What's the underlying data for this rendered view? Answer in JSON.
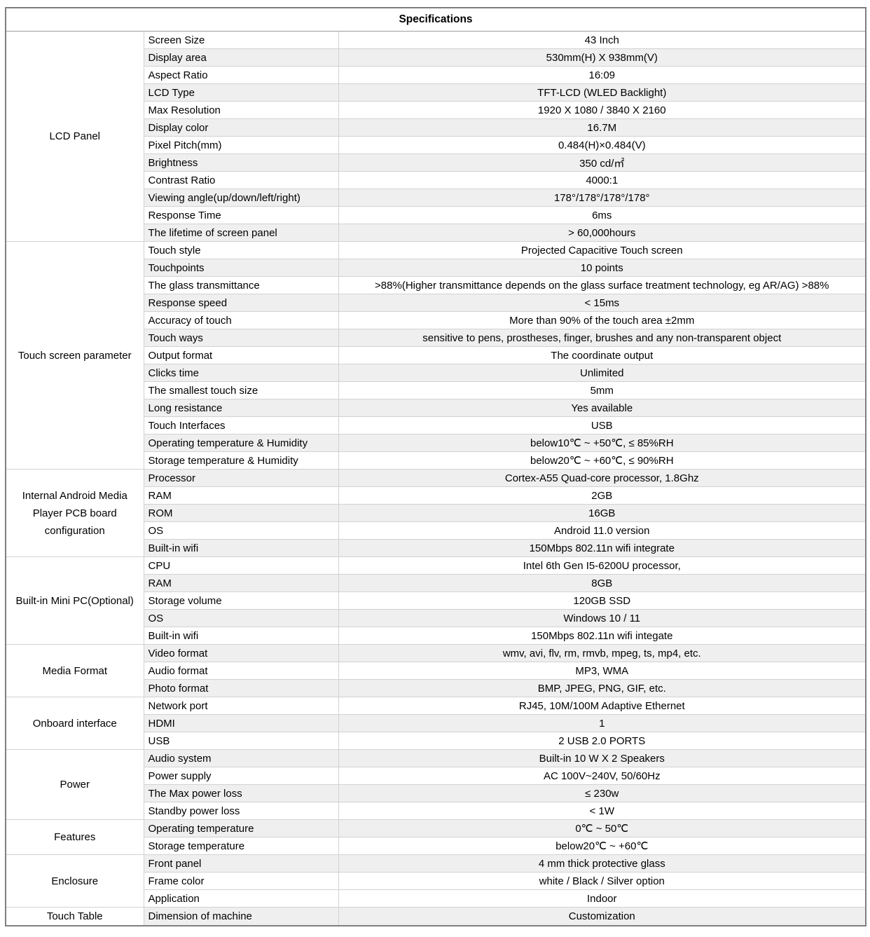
{
  "title": "Specifications",
  "colors": {
    "row_shade": "#efefef",
    "border_light": "#d2d2d2",
    "border_section": "#9a9a9a",
    "border_outer": "#7f7f7f",
    "text": "#000000",
    "background": "#ffffff"
  },
  "sections": [
    {
      "category": "LCD Panel",
      "rows": [
        {
          "param": "Screen Size",
          "value": "43 Inch",
          "shaded": false
        },
        {
          "param": "Display area",
          "value": "530mm(H) X 938mm(V)",
          "shaded": true
        },
        {
          "param": "Aspect Ratio",
          "value": "16:09",
          "shaded": false
        },
        {
          "param": "LCD Type",
          "value": "TFT-LCD (WLED Backlight)",
          "shaded": true
        },
        {
          "param": "Max Resolution",
          "value": "1920 X 1080 / 3840 X 2160",
          "shaded": false
        },
        {
          "param": "Display color",
          "value": "16.7M",
          "shaded": true
        },
        {
          "param": "Pixel Pitch(mm)",
          "value": "0.484(H)×0.484(V)",
          "shaded": false
        },
        {
          "param": "Brightness",
          "value": "350 cd/㎡",
          "shaded": true
        },
        {
          "param": "Contrast Ratio",
          "value": "4000:1",
          "shaded": false
        },
        {
          "param": "Viewing angle(up/down/left/right)",
          "value": "178°/178°/178°/178°",
          "shaded": true
        },
        {
          "param": "Response Time",
          "value": "6ms",
          "shaded": false
        },
        {
          "param": "The lifetime of screen panel",
          "value": "> 60,000hours",
          "shaded": true
        }
      ]
    },
    {
      "category": "Touch screen parameter",
      "rows": [
        {
          "param": "Touch style",
          "value": "Projected Capacitive Touch screen",
          "shaded": false
        },
        {
          "param": "Touchpoints",
          "value": "10 points",
          "shaded": true
        },
        {
          "param": "The glass transmittance",
          "value": ">88%(Higher transmittance depends on the glass surface treatment technology, eg AR/AG) >88%",
          "shaded": false
        },
        {
          "param": "Response speed",
          "value": "< 15ms",
          "shaded": true
        },
        {
          "param": "Accuracy of touch",
          "value": "More than 90% of the touch area ±2mm",
          "shaded": false
        },
        {
          "param": "Touch ways",
          "value": "sensitive to pens, prostheses, finger, brushes and any non-transparent object",
          "shaded": true
        },
        {
          "param": "Output format",
          "value": "The coordinate output",
          "shaded": false
        },
        {
          "param": "Clicks time",
          "value": "Unlimited",
          "shaded": true
        },
        {
          "param": "The smallest touch size",
          "value": "5mm",
          "shaded": false
        },
        {
          "param": "Long resistance",
          "value": "Yes available",
          "shaded": true
        },
        {
          "param": "Touch Interfaces",
          "value": "USB",
          "shaded": false
        },
        {
          "param": "Operating temperature & Humidity",
          "value": "below10℃ ~ +50℃, ≤ 85%RH",
          "shaded": true
        },
        {
          "param": "Storage temperature & Humidity",
          "value": "below20℃ ~ +60℃, ≤ 90%RH",
          "shaded": false
        }
      ]
    },
    {
      "category": "Internal Android Media Player  PCB board configuration",
      "rows": [
        {
          "param": "Processor",
          "value": "Cortex-A55 Quad-core processor, 1.8Ghz",
          "shaded": true
        },
        {
          "param": "RAM",
          "value": "2GB",
          "shaded": false
        },
        {
          "param": "ROM",
          "value": "16GB",
          "shaded": true
        },
        {
          "param": "OS",
          "value": "Android 11.0 version",
          "shaded": false
        },
        {
          "param": "Built-in wifi",
          "value": "150Mbps 802.11n wifi integrate",
          "shaded": true
        }
      ]
    },
    {
      "category": "Built-in Mini PC(Optional)",
      "rows": [
        {
          "param": "CPU",
          "value": "Intel 6th Gen I5-6200U processor,",
          "shaded": false
        },
        {
          "param": "RAM",
          "value": "8GB",
          "shaded": true
        },
        {
          "param": "Storage volume",
          "value": "120GB SSD",
          "shaded": false
        },
        {
          "param": "OS",
          "value": "Windows 10 / 11",
          "shaded": true
        },
        {
          "param": "Built-in wifi",
          "value": "150Mbps 802.11n wifi integate",
          "shaded": false
        }
      ]
    },
    {
      "category": "Media Format",
      "rows": [
        {
          "param": "Video format",
          "value": "wmv, avi, flv, rm, rmvb, mpeg, ts, mp4, etc.",
          "shaded": true
        },
        {
          "param": "Audio format",
          "value": "MP3, WMA",
          "shaded": false
        },
        {
          "param": "Photo format",
          "value": "BMP, JPEG, PNG, GIF, etc.",
          "shaded": true
        }
      ]
    },
    {
      "category": "Onboard interface",
      "rows": [
        {
          "param": "Network port",
          "value": "RJ45, 10M/100M Adaptive Ethernet",
          "shaded": false
        },
        {
          "param": "HDMI",
          "value": "1",
          "shaded": true
        },
        {
          "param": "USB",
          "value": "2 USB 2.0 PORTS",
          "shaded": false
        }
      ]
    },
    {
      "category": "Power",
      "rows": [
        {
          "param": "Audio system",
          "value": "Built-in 10 W  X 2 Speakers",
          "shaded": true
        },
        {
          "param": "Power supply",
          "value": "AC 100V~240V, 50/60Hz",
          "shaded": false
        },
        {
          "param": "The Max power loss",
          "value": "≤ 230w",
          "shaded": true
        },
        {
          "param": "Standby power loss",
          "value": "< 1W",
          "shaded": false
        }
      ]
    },
    {
      "category": "Features",
      "rows": [
        {
          "param": "Operating temperature",
          "value": "0℃ ~ 50℃",
          "shaded": true
        },
        {
          "param": "Storage temperature",
          "value": "below20℃ ~ +60℃",
          "shaded": false
        }
      ]
    },
    {
      "category": "Enclosure",
      "rows": [
        {
          "param": "Front panel",
          "value": "4 mm thick protective glass",
          "shaded": true
        },
        {
          "param": "Frame color",
          "value": "white / Black / Silver option",
          "shaded": false
        },
        {
          "param": "Application",
          "value": "Indoor",
          "shaded": false
        }
      ]
    },
    {
      "category": "Touch Table",
      "rows": [
        {
          "param": "Dimension of machine",
          "value": "Customization",
          "shaded": true
        }
      ]
    }
  ]
}
